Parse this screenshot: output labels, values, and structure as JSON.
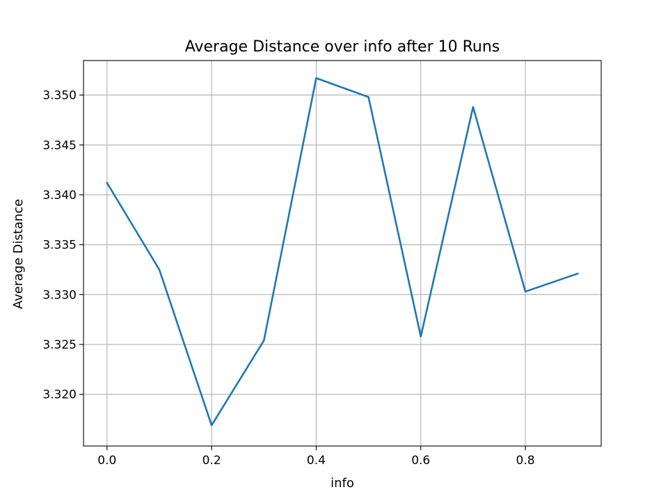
{
  "chart_data": {
    "type": "line",
    "title": "Average Distance over info after 10 Runs",
    "xlabel": "info",
    "ylabel": "Average Distance",
    "xlim": [
      -0.045,
      0.945
    ],
    "ylim": [
      3.31482,
      3.35346
    ],
    "xticks": [
      0.0,
      0.2,
      0.4,
      0.6,
      0.8
    ],
    "xtick_labels": [
      "0.0",
      "0.2",
      "0.4",
      "0.6",
      "0.8"
    ],
    "yticks": [
      3.32,
      3.325,
      3.33,
      3.335,
      3.34,
      3.345,
      3.35
    ],
    "ytick_labels": [
      "3.320",
      "3.325",
      "3.330",
      "3.335",
      "3.340",
      "3.345",
      "3.350"
    ],
    "grid": true,
    "series": [
      {
        "color": "#1f77b4",
        "x": [
          0.0,
          0.1,
          0.2,
          0.3,
          0.4,
          0.5,
          0.6,
          0.7,
          0.8,
          0.9
        ],
        "y": [
          3.3412,
          3.3325,
          3.3169,
          3.3254,
          3.3517,
          3.3498,
          3.3258,
          3.3488,
          3.3303,
          3.3321
        ]
      }
    ]
  }
}
